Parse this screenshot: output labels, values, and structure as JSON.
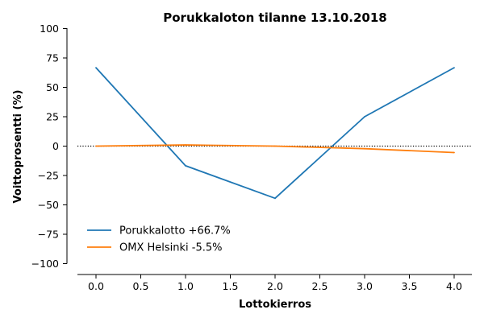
{
  "chart_data": {
    "type": "line",
    "title": "Porukkaloton tilanne 13.10.2018",
    "xlabel": "Lottokierros",
    "ylabel": "Voittoprosentti (%)",
    "xlim": [
      -0.2,
      4.2
    ],
    "ylim": [
      -110,
      100
    ],
    "x_ticks": [
      0.0,
      0.5,
      1.0,
      1.5,
      2.0,
      2.5,
      3.0,
      3.5,
      4.0
    ],
    "x_tick_labels": [
      "0.0",
      "0.5",
      "1.0",
      "1.5",
      "2.0",
      "2.5",
      "3.0",
      "3.5",
      "4.0"
    ],
    "y_ticks": [
      100,
      75,
      50,
      25,
      0,
      -25,
      -50,
      -75,
      -100
    ],
    "y_tick_labels": [
      "100",
      "75",
      "50",
      "25",
      "0",
      "−25",
      "−50",
      "−75",
      "−100"
    ],
    "grid": false,
    "legend_position": "lower-left",
    "zero_line": {
      "y": 0,
      "style": "dotted",
      "color": "#000000"
    },
    "series": [
      {
        "name": "Porukkalotto +66.7%",
        "color": "#1f77b4",
        "x": [
          0,
          1,
          2,
          3,
          4
        ],
        "y": [
          66.7,
          -16.7,
          -44.4,
          25.0,
          66.7
        ]
      },
      {
        "name": "OMX Helsinki -5.5%",
        "color": "#ff7f0e",
        "x": [
          0,
          1,
          2,
          3,
          4
        ],
        "y": [
          0.0,
          1.0,
          0.0,
          -2.2,
          -5.5
        ]
      }
    ]
  }
}
